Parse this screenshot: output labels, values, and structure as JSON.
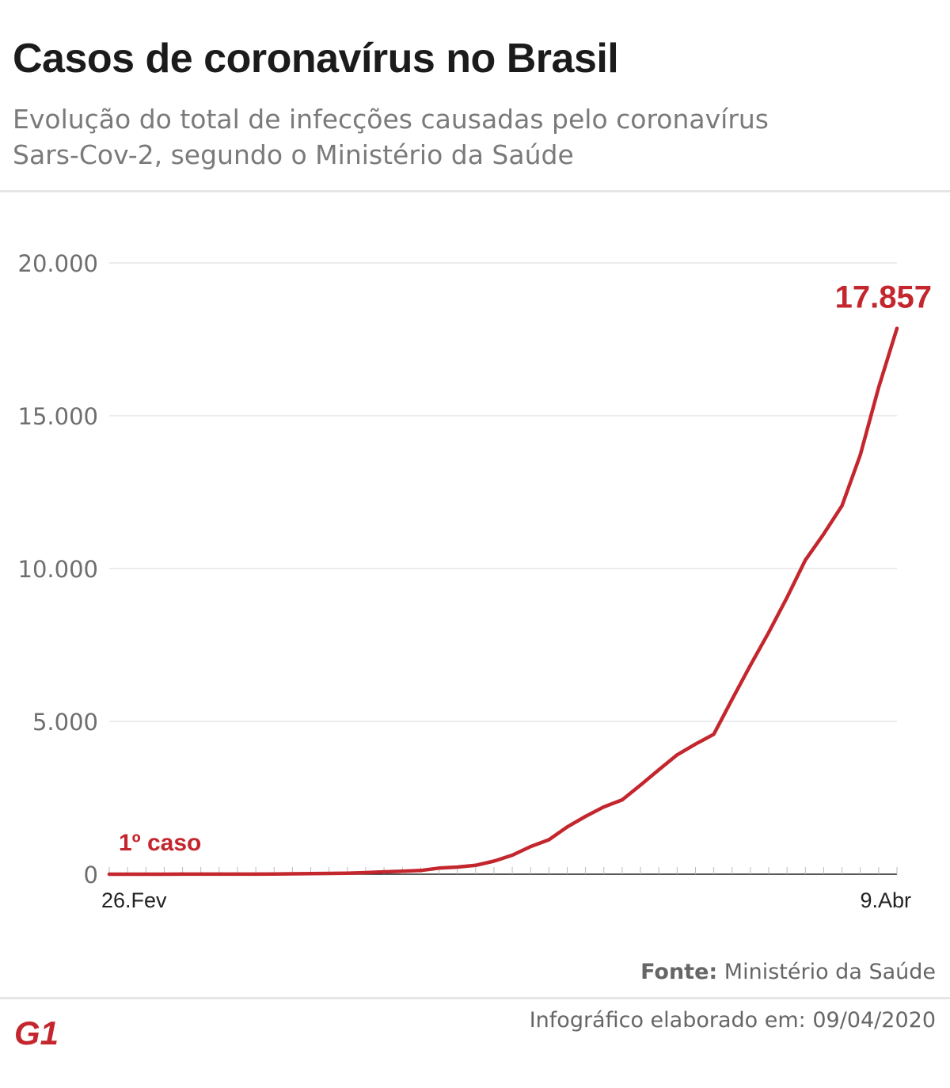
{
  "header": {
    "title": "Casos de coronavírus no Brasil",
    "subtitle_line1": "Evolução do total de infecções causadas pelo coronavírus",
    "subtitle_line2": "Sars-Cov-2, segundo o Ministério da Saúde"
  },
  "footer": {
    "source_label": "Fonte:",
    "source_value": "Ministério da Saúde",
    "credit_label": "Infográfico elaborado em:",
    "credit_date": "09/04/2020",
    "logo_text": "G1"
  },
  "colors": {
    "line": "#c4262e",
    "annotation": "#c4262e",
    "grid": "#d9d9d9",
    "axis": "#222222",
    "tick_label": "#6e6e6e",
    "logo": "#c4262e"
  },
  "chart_data": {
    "type": "line",
    "title": "Casos de coronavírus no Brasil",
    "xlabel": "",
    "ylabel": "",
    "ylim": [
      0,
      20000
    ],
    "yticks": [
      0,
      5000,
      10000,
      15000,
      20000
    ],
    "ytick_labels": [
      "0",
      "5.000",
      "10.000",
      "15.000",
      "20.000"
    ],
    "xtick_labels": [
      {
        "index": 0,
        "label": "26.Fev"
      },
      {
        "index": 43,
        "label": "9.Abr"
      }
    ],
    "grid": true,
    "series": [
      {
        "values": [
          1,
          1,
          1,
          1,
          2,
          2,
          2,
          2,
          3,
          8,
          13,
          19,
          25,
          34,
          52,
          77,
          98,
          121,
          200,
          234,
          291,
          428,
          621,
          904,
          1128,
          1546,
          1891,
          2201,
          2433,
          2915,
          3417,
          3904,
          4256,
          4579,
          5717,
          6836,
          7910,
          9056,
          10278,
          11130,
          12056,
          13717,
          15927,
          17857
        ]
      }
    ],
    "annotations": [
      {
        "text": "1º caso",
        "index": 0
      },
      {
        "text": "17.857",
        "index": 43
      }
    ]
  }
}
